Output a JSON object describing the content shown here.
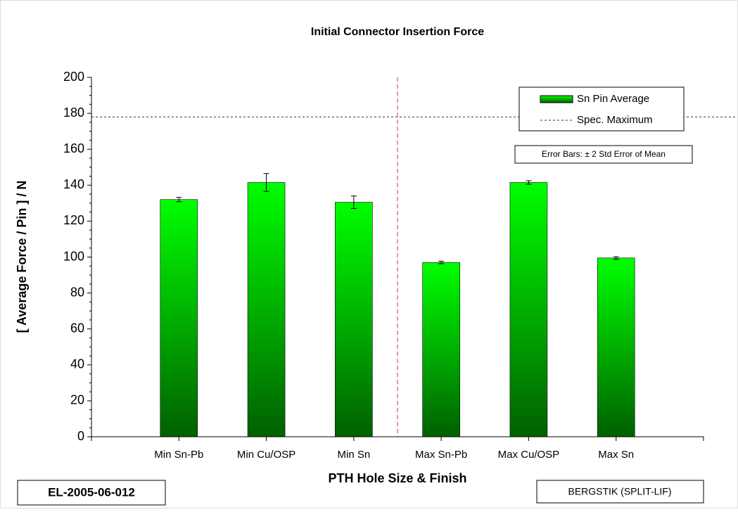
{
  "chart_data": {
    "type": "bar",
    "title": "Initial Connector Insertion Force",
    "x_label": "PTH Hole Size & Finish",
    "y_label": "[ Average Force / Pin ] / N",
    "categories": [
      "Min Sn-Pb",
      "Min Cu/OSP",
      "Min Sn",
      "Max Sn-Pb",
      "Max Cu/OSP",
      "Max Sn"
    ],
    "x": [
      1,
      2,
      3,
      4,
      5,
      6
    ],
    "xlim": [
      0,
      7
    ],
    "divider_x": 3.5,
    "series": [
      {
        "name": "Sn Pin Average",
        "color": "#00dd00",
        "values": [
          132,
          141.5,
          130.5,
          97,
          141.5,
          99.5
        ],
        "errors": [
          1.2,
          5,
          3.5,
          0.7,
          1,
          0.7
        ]
      }
    ],
    "spec_line": {
      "name": "Spec. Maximum",
      "value": 178
    },
    "ylim": [
      0,
      200
    ],
    "yticks": [
      0,
      20,
      40,
      60,
      80,
      100,
      120,
      140,
      160,
      180,
      200
    ],
    "error_note": "Error Bars: ± 2 Std Error of Mean",
    "footer_left": "EL-2005-06-012",
    "footer_right": "BERGSTIK (SPLIT-LIF)"
  }
}
